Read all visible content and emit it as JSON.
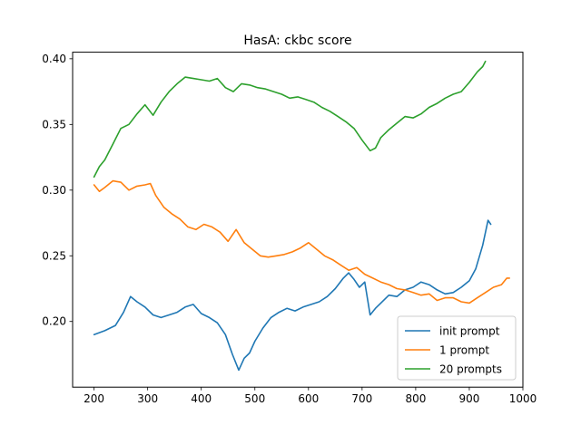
{
  "chart_data": {
    "type": "line",
    "title": "HasA: ckbc score",
    "xlabel": "",
    "ylabel": "",
    "xlim": [
      160,
      1000
    ],
    "ylim": [
      0.15,
      0.405
    ],
    "xticks": [
      200,
      300,
      400,
      500,
      600,
      700,
      800,
      900,
      1000
    ],
    "yticks": [
      0.2,
      0.25,
      0.3,
      0.35,
      0.4
    ],
    "xtick_labels": [
      "200",
      "300",
      "400",
      "500",
      "600",
      "700",
      "800",
      "900",
      "1000"
    ],
    "ytick_labels": [
      "0.20",
      "0.25",
      "0.30",
      "0.35",
      "0.40"
    ],
    "grid": false,
    "legend_position": "lower-right",
    "series": [
      {
        "name": "init prompt",
        "color": "#1f77b4",
        "x": [
          200,
          220,
          240,
          255,
          268,
          280,
          295,
          310,
          325,
          340,
          355,
          370,
          385,
          400,
          415,
          430,
          445,
          458,
          470,
          480,
          490,
          500,
          515,
          530,
          545,
          560,
          575,
          590,
          605,
          620,
          635,
          650,
          665,
          675,
          685,
          695,
          705,
          715,
          725,
          735,
          750,
          765,
          780,
          795,
          810,
          825,
          840,
          855,
          870,
          885,
          900,
          912,
          925,
          935,
          940
        ],
        "y": [
          0.19,
          0.193,
          0.197,
          0.207,
          0.219,
          0.215,
          0.211,
          0.205,
          0.203,
          0.205,
          0.207,
          0.211,
          0.213,
          0.206,
          0.203,
          0.199,
          0.19,
          0.175,
          0.163,
          0.172,
          0.176,
          0.185,
          0.195,
          0.203,
          0.207,
          0.21,
          0.208,
          0.211,
          0.213,
          0.215,
          0.219,
          0.225,
          0.233,
          0.237,
          0.232,
          0.226,
          0.23,
          0.205,
          0.21,
          0.214,
          0.22,
          0.219,
          0.224,
          0.226,
          0.23,
          0.228,
          0.224,
          0.221,
          0.222,
          0.226,
          0.231,
          0.24,
          0.258,
          0.277,
          0.274
        ]
      },
      {
        "name": "1 prompt",
        "color": "#ff7f0e",
        "x": [
          200,
          210,
          220,
          235,
          250,
          265,
          280,
          295,
          305,
          315,
          330,
          345,
          360,
          375,
          390,
          405,
          420,
          435,
          450,
          465,
          480,
          495,
          510,
          525,
          540,
          555,
          570,
          585,
          600,
          615,
          630,
          645,
          660,
          675,
          690,
          705,
          720,
          735,
          750,
          765,
          780,
          795,
          810,
          825,
          840,
          855,
          870,
          885,
          900,
          915,
          930,
          945,
          960,
          970,
          975
        ],
        "y": [
          0.304,
          0.299,
          0.302,
          0.307,
          0.306,
          0.3,
          0.303,
          0.304,
          0.305,
          0.296,
          0.287,
          0.282,
          0.278,
          0.272,
          0.27,
          0.274,
          0.272,
          0.268,
          0.261,
          0.27,
          0.26,
          0.255,
          0.25,
          0.249,
          0.25,
          0.251,
          0.253,
          0.256,
          0.26,
          0.255,
          0.25,
          0.247,
          0.243,
          0.239,
          0.241,
          0.236,
          0.233,
          0.23,
          0.228,
          0.225,
          0.224,
          0.222,
          0.22,
          0.221,
          0.216,
          0.218,
          0.218,
          0.215,
          0.214,
          0.218,
          0.222,
          0.226,
          0.228,
          0.233,
          0.233
        ]
      },
      {
        "name": "20 prompts",
        "color": "#2ca02c",
        "x": [
          200,
          210,
          220,
          235,
          250,
          265,
          280,
          295,
          310,
          325,
          340,
          355,
          370,
          385,
          400,
          415,
          430,
          445,
          460,
          475,
          490,
          505,
          520,
          535,
          550,
          565,
          580,
          595,
          610,
          625,
          640,
          655,
          670,
          685,
          700,
          715,
          725,
          735,
          750,
          765,
          780,
          795,
          810,
          825,
          840,
          855,
          870,
          885,
          900,
          915,
          925,
          930
        ],
        "y": [
          0.31,
          0.318,
          0.323,
          0.335,
          0.347,
          0.35,
          0.358,
          0.365,
          0.357,
          0.367,
          0.375,
          0.381,
          0.386,
          0.385,
          0.384,
          0.383,
          0.385,
          0.378,
          0.375,
          0.381,
          0.38,
          0.378,
          0.377,
          0.375,
          0.373,
          0.37,
          0.371,
          0.369,
          0.367,
          0.363,
          0.36,
          0.356,
          0.352,
          0.347,
          0.338,
          0.33,
          0.332,
          0.34,
          0.346,
          0.351,
          0.356,
          0.355,
          0.358,
          0.363,
          0.366,
          0.37,
          0.373,
          0.375,
          0.382,
          0.39,
          0.394,
          0.398
        ]
      }
    ]
  }
}
